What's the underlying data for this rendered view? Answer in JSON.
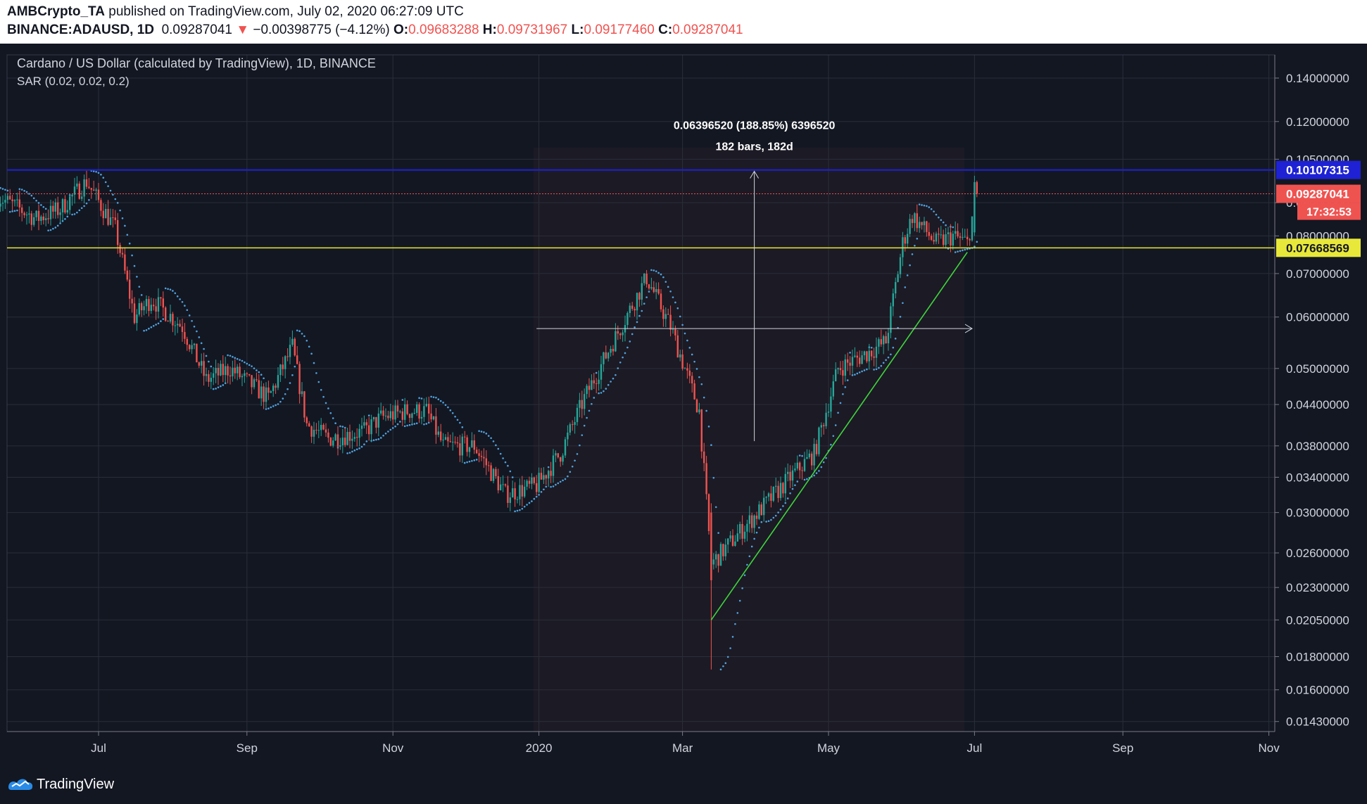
{
  "header": {
    "publisher": "AMBCrypto_TA",
    "published_text": " published on TradingView.com, July 02, 2020 06:27:09 UTC",
    "symbol": "BINANCE:ADAUSD, 1D",
    "last": "0.09287041",
    "change_arrow": "▼",
    "change": "−0.00398775 (−4.12%)",
    "o_label": "O:",
    "o_value": "0.09683288",
    "h_label": "H:",
    "h_value": "0.09731967",
    "l_label": "L:",
    "l_value": "0.09177460",
    "c_label": "C:",
    "c_value": "0.09287041"
  },
  "legend": {
    "title": "Cardano / US Dollar (calculated by TradingView), 1D, BINANCE",
    "indicator": "SAR (0.02, 0.02, 0.2)"
  },
  "colors": {
    "background": "#131722",
    "up": "#26a69a",
    "down": "#ef5350",
    "sar": "#4fa3e0",
    "resistance_line": "#1e22d4",
    "support_line": "#e8e83a",
    "trendline": "#3ed63e",
    "last_price_label": "#ef5350",
    "grid": "#2a2e39"
  },
  "chart_data": {
    "type": "candlestick",
    "scale": "log",
    "symbol": "ADAUSD",
    "interval": "1D",
    "exchange": "BINANCE",
    "x_range": [
      "2020-05-20",
      "2020-11-30"
    ],
    "ylim": [
      0.0138,
      0.152
    ],
    "x_ticks": [
      {
        "date": "2019-07-01",
        "label": "Jul"
      },
      {
        "date": "2019-09-01",
        "label": "Sep"
      },
      {
        "date": "2019-11-01",
        "label": "Nov"
      },
      {
        "date": "2020-01-01",
        "label": "2020"
      },
      {
        "date": "2020-03-01",
        "label": "Mar"
      },
      {
        "date": "2020-05-01",
        "label": "May"
      },
      {
        "date": "2020-07-01",
        "label": "Jul"
      },
      {
        "date": "2020-09-01",
        "label": "Sep"
      },
      {
        "date": "2020-11-01",
        "label": "Nov"
      }
    ],
    "y_ticks": [
      "0.14000000",
      "0.12000000",
      "0.10500000",
      "0.09000000",
      "0.08000000",
      "0.07000000",
      "0.06000000",
      "0.05000000",
      "0.04400000",
      "0.03800000",
      "0.03400000",
      "0.03000000",
      "0.02600000",
      "0.02300000",
      "0.02050000",
      "0.01800000",
      "0.01600000",
      "0.01430000"
    ],
    "price_labels": [
      {
        "name": "resistance",
        "value": "0.10107315"
      },
      {
        "name": "last",
        "value": "0.09287041",
        "countdown": "17:32:53"
      },
      {
        "name": "support",
        "value": "0.07668569"
      }
    ],
    "horizontal_lines": [
      {
        "name": "resistance",
        "value": 0.10107315
      },
      {
        "name": "last",
        "value": 0.09287041
      },
      {
        "name": "support",
        "value": 0.07668569
      }
    ],
    "trendline": [
      {
        "date": "2020-03-13",
        "price": 0.0205
      },
      {
        "date": "2020-06-28",
        "price": 0.0755
      }
    ],
    "measure": {
      "line1": "0.06396520 (188.85%) 6396520",
      "line2": "182 bars, 182d",
      "from": {
        "date": "2019-12-31",
        "price": 0.0576
      },
      "to": {
        "date": "2020-06-30",
        "price": 0.0576
      },
      "vertical_date": "2020-03-31",
      "vertical_range": [
        0.0576,
        0.1006
      ]
    },
    "price_path": [
      {
        "date": "2019-05-20",
        "price": 0.092
      },
      {
        "date": "2019-06-05",
        "price": 0.085
      },
      {
        "date": "2019-06-15",
        "price": 0.088
      },
      {
        "date": "2019-06-26",
        "price": 0.097
      },
      {
        "date": "2019-07-08",
        "price": 0.082
      },
      {
        "date": "2019-07-16",
        "price": 0.06
      },
      {
        "date": "2019-07-23",
        "price": 0.064
      },
      {
        "date": "2019-08-05",
        "price": 0.058
      },
      {
        "date": "2019-08-15",
        "price": 0.048
      },
      {
        "date": "2019-08-25",
        "price": 0.05
      },
      {
        "date": "2019-09-10",
        "price": 0.045
      },
      {
        "date": "2019-09-20",
        "price": 0.054
      },
      {
        "date": "2019-09-26",
        "price": 0.041
      },
      {
        "date": "2019-10-05",
        "price": 0.039
      },
      {
        "date": "2019-10-20",
        "price": 0.04
      },
      {
        "date": "2019-10-27",
        "price": 0.042
      },
      {
        "date": "2019-11-07",
        "price": 0.043
      },
      {
        "date": "2019-11-15",
        "price": 0.043
      },
      {
        "date": "2019-11-22",
        "price": 0.038
      },
      {
        "date": "2019-12-05",
        "price": 0.038
      },
      {
        "date": "2019-12-18",
        "price": 0.032
      },
      {
        "date": "2019-12-31",
        "price": 0.033
      },
      {
        "date": "2020-01-10",
        "price": 0.037
      },
      {
        "date": "2020-01-20",
        "price": 0.045
      },
      {
        "date": "2020-02-01",
        "price": 0.055
      },
      {
        "date": "2020-02-15",
        "price": 0.069
      },
      {
        "date": "2020-02-25",
        "price": 0.058
      },
      {
        "date": "2020-03-08",
        "price": 0.043
      },
      {
        "date": "2020-03-13",
        "price": 0.025
      },
      {
        "date": "2020-03-25",
        "price": 0.028
      },
      {
        "date": "2020-04-05",
        "price": 0.031
      },
      {
        "date": "2020-04-15",
        "price": 0.034
      },
      {
        "date": "2020-04-25",
        "price": 0.037
      },
      {
        "date": "2020-05-05",
        "price": 0.05
      },
      {
        "date": "2020-05-18",
        "price": 0.053
      },
      {
        "date": "2020-05-25",
        "price": 0.055
      },
      {
        "date": "2020-06-01",
        "price": 0.078
      },
      {
        "date": "2020-06-05",
        "price": 0.086
      },
      {
        "date": "2020-06-15",
        "price": 0.078
      },
      {
        "date": "2020-06-22",
        "price": 0.08
      },
      {
        "date": "2020-06-28",
        "price": 0.078
      },
      {
        "date": "2020-07-02",
        "price": 0.093
      }
    ]
  },
  "footer": {
    "logo_text": "TradingView",
    "logo_icon": "tradingview-logo-icon"
  }
}
